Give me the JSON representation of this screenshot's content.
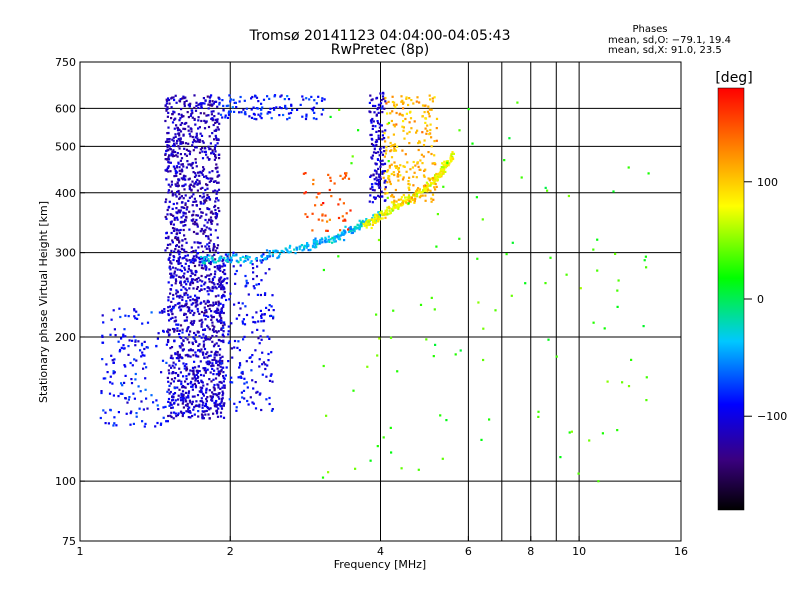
{
  "title_line1": "Tromsø 20141123 04:04:00-04:05:43",
  "title_line2": "RwPretec (8p)",
  "stats": {
    "header": "Phases",
    "line_o": "mean, sd,O: −79.1, 19.4",
    "line_x": "mean, sd,X:  91.0, 23.5"
  },
  "chart_data": {
    "type": "scatter",
    "xlabel": "Frequency [MHz]",
    "ylabel": "Stationary phase Virtual Height [km]",
    "xscale": "log",
    "yscale": "log",
    "xlim": [
      1,
      16
    ],
    "ylim": [
      75,
      750
    ],
    "xticks": [
      1,
      2,
      4,
      6,
      8,
      10,
      16
    ],
    "xtick_labels": [
      "1",
      "2",
      "4",
      "6",
      "8",
      "10",
      "16"
    ],
    "x_minor_grid": [
      7,
      9
    ],
    "yticks": [
      75,
      100,
      200,
      300,
      400,
      500,
      600,
      750
    ],
    "ytick_labels": [
      "75",
      "100",
      "200",
      "300",
      "400",
      "500",
      "600",
      "750"
    ],
    "y_minor_grid": [
      125,
      150
    ],
    "grid": true,
    "colorbar": {
      "label": "[deg]",
      "range": [
        -180,
        180
      ],
      "ticks": [
        100,
        0,
        -100
      ],
      "tick_labels": [
        "100",
        "0",
        "−100"
      ],
      "stops": [
        "#000000",
        "#3a0080",
        "#0000ff",
        "#00c8ff",
        "#00ff00",
        "#ffff00",
        "#ff8000",
        "#ff0000"
      ]
    },
    "clusters": [
      {
        "name": "o-trace-low",
        "x": [
          1.5,
          1.95
        ],
        "y": [
          135,
          300
        ],
        "phase": -110,
        "n": 900
      },
      {
        "name": "o-trace-upper",
        "x": [
          1.48,
          1.9
        ],
        "y": [
          300,
          640
        ],
        "phase": -115,
        "n": 700
      },
      {
        "name": "o-trace-low-spread",
        "x": [
          1.1,
          1.55
        ],
        "y": [
          130,
          230
        ],
        "phase": -90,
        "n": 180
      },
      {
        "name": "o-trace-right",
        "x": [
          1.9,
          2.45
        ],
        "y": [
          140,
          300
        ],
        "phase": -95,
        "n": 200
      },
      {
        "name": "o-trace-top",
        "x": [
          1.9,
          3.1
        ],
        "y": [
          570,
          640
        ],
        "phase": -85,
        "n": 120
      },
      {
        "name": "o-curve",
        "curve": [
          [
            1.75,
            290
          ],
          [
            2.2,
            292
          ],
          [
            2.7,
            305
          ],
          [
            3.2,
            320
          ],
          [
            3.6,
            340
          ],
          [
            4.0,
            360
          ]
        ],
        "phase": -40,
        "n": 260
      },
      {
        "name": "x-curve",
        "curve": [
          [
            3.7,
            340
          ],
          [
            4.2,
            370
          ],
          [
            4.8,
            400
          ],
          [
            5.3,
            440
          ],
          [
            5.6,
            480
          ]
        ],
        "phase": 80,
        "n": 260
      },
      {
        "name": "x-vertical",
        "x": [
          4.05,
          5.2
        ],
        "y": [
          380,
          640
        ],
        "phase": 110,
        "n": 240
      },
      {
        "name": "o-vertical",
        "x": [
          3.8,
          4.1
        ],
        "y": [
          380,
          650
        ],
        "phase": -110,
        "n": 140
      },
      {
        "name": "mid-ridge",
        "x": [
          2.8,
          3.5
        ],
        "y": [
          330,
          440
        ],
        "phase": 150,
        "n": 50
      },
      {
        "name": "sparse-scatter",
        "x": [
          3,
          14
        ],
        "y": [
          100,
          620
        ],
        "phase": 30,
        "n": 110
      }
    ]
  }
}
